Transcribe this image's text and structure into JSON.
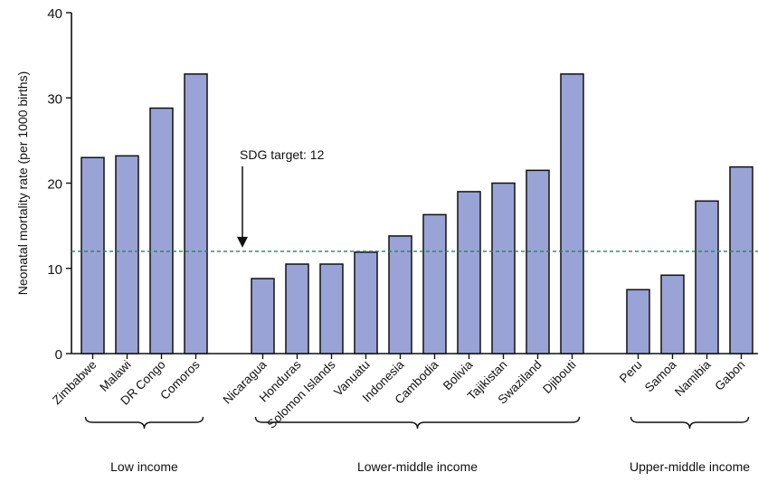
{
  "chart_data": {
    "type": "bar",
    "ylabel": "Neonatal mortality rate (per 1000 births)",
    "ylim": [
      0,
      40
    ],
    "yticks": [
      0,
      10,
      20,
      30,
      40
    ],
    "bar_color": "#9aa3d6",
    "bar_edge_color": "#111111",
    "reference_line": {
      "value": 12,
      "label": "SDG target: 12",
      "color": "#2e7d62"
    },
    "groups": [
      {
        "name": "Low income",
        "categories": [
          "Zimbabwe",
          "Malawi",
          "DR Congo",
          "Comoros"
        ],
        "values": [
          23.0,
          23.2,
          28.8,
          32.8
        ]
      },
      {
        "name": "Lower-middle income",
        "categories": [
          "Nicaragua",
          "Honduras",
          "Solomon Islands",
          "Vanuatu",
          "Indonesia",
          "Cambodia",
          "Bolivia",
          "Tajikistan",
          "Swaziland",
          "Djibouti"
        ],
        "values": [
          8.8,
          10.5,
          10.5,
          11.9,
          13.8,
          16.3,
          19.0,
          20.0,
          21.5,
          32.8
        ]
      },
      {
        "name": "Upper-middle income",
        "categories": [
          "Peru",
          "Samoa",
          "Namibia",
          "Gabon"
        ],
        "values": [
          7.5,
          9.2,
          17.9,
          21.9
        ]
      }
    ]
  }
}
